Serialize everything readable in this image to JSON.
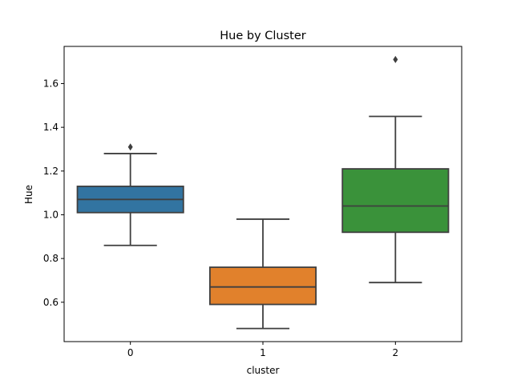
{
  "chart_data": {
    "type": "box",
    "title": "Hue by Cluster",
    "xlabel": "cluster",
    "ylabel": "Hue",
    "categories": [
      "0",
      "1",
      "2"
    ],
    "ylim": [
      0.42,
      1.77
    ],
    "yticks": [
      "0.6",
      "0.8",
      "1.0",
      "1.2",
      "1.4",
      "1.6"
    ],
    "grid": false,
    "boxes": [
      {
        "category": "0",
        "color": "#3274a1",
        "whisker_low": 0.86,
        "q1": 1.01,
        "median": 1.07,
        "q3": 1.13,
        "whisker_high": 1.28,
        "outliers": [
          1.31
        ]
      },
      {
        "category": "1",
        "color": "#e1812c",
        "whisker_low": 0.48,
        "q1": 0.59,
        "median": 0.67,
        "q3": 0.76,
        "whisker_high": 0.98,
        "outliers": []
      },
      {
        "category": "2",
        "color": "#3a923a",
        "whisker_low": 0.69,
        "q1": 0.92,
        "median": 1.04,
        "q3": 1.21,
        "whisker_high": 1.45,
        "outliers": [
          1.71
        ]
      }
    ]
  }
}
